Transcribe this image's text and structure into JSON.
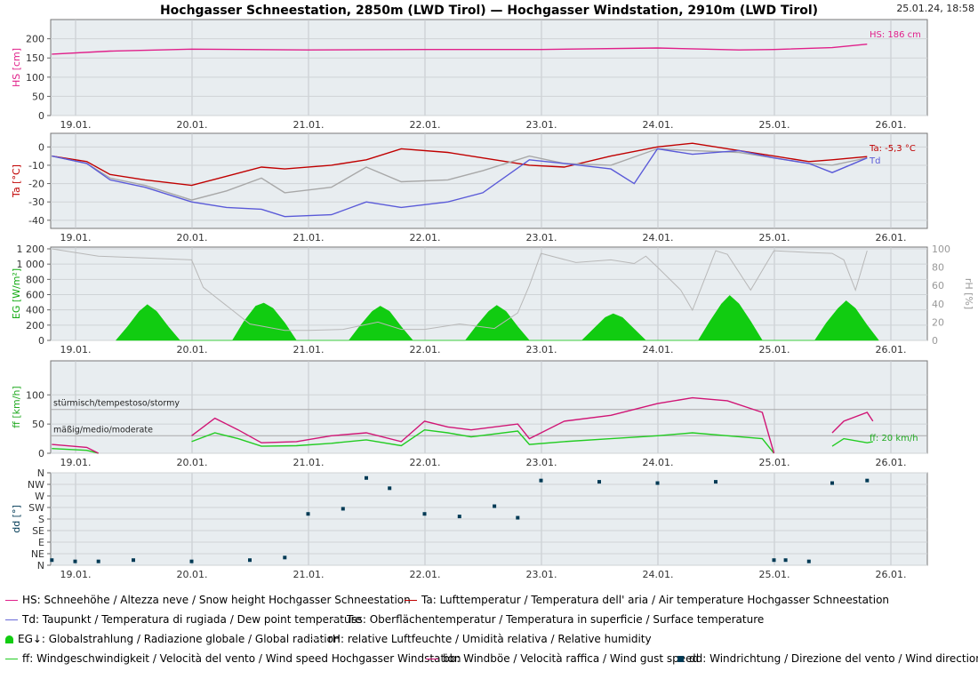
{
  "header": {
    "title": "Hochgasser Schneestation, 2850m (LWD Tirol) — Hochgasser Windstation, 2910m (LWD Tirol)",
    "timestamp": "25.01.24, 18:58"
  },
  "chart_data": [
    {
      "type": "line",
      "ylabel": "HS [cm]",
      "ylim": [
        0,
        220
      ],
      "yticks": [
        "0",
        "50",
        "100",
        "150",
        "200"
      ],
      "x_unit": "days from 19.01. 00:00",
      "xticks": [
        "19.01.",
        "20.01.",
        "21.01.",
        "22.01.",
        "23.01.",
        "24.01.",
        "25.01.",
        "26.01."
      ],
      "series": [
        {
          "name": "HS",
          "color": "#e0208a",
          "x": [
            -0.2,
            0.3,
            1.0,
            2.0,
            3.0,
            4.0,
            5.0,
            5.7,
            6.0,
            6.5,
            6.8
          ],
          "y": [
            160,
            168,
            173,
            171,
            172,
            172,
            176,
            171,
            172,
            177,
            186
          ]
        }
      ],
      "annotations": [
        "HS: 186 cm"
      ]
    },
    {
      "type": "line",
      "ylabel": "Ta [°C]",
      "ylim": [
        -43,
        5
      ],
      "yticks": [
        "-40",
        "-30",
        "-20",
        "-10",
        "0"
      ],
      "x_unit": "days from 19.01. 00:00",
      "series": [
        {
          "name": "Ta",
          "color": "#c00000",
          "x": [
            -0.2,
            0.1,
            0.3,
            0.6,
            1.0,
            1.3,
            1.6,
            1.8,
            2.2,
            2.5,
            2.8,
            3.2,
            3.5,
            3.9,
            4.2,
            4.6,
            5.0,
            5.3,
            5.7,
            6.0,
            6.3,
            6.5,
            6.8
          ],
          "y": [
            -5,
            -8,
            -15,
            -18,
            -21,
            -16,
            -11,
            -12,
            -10,
            -7,
            -1,
            -3,
            -6,
            -10,
            -11,
            -5,
            0,
            2,
            -2,
            -5,
            -8,
            -7,
            -5.3
          ]
        },
        {
          "name": "Tss",
          "color": "#a8a8a8",
          "x": [
            -0.2,
            0.1,
            0.3,
            0.6,
            1.0,
            1.3,
            1.6,
            1.8,
            2.2,
            2.5,
            2.8,
            3.2,
            3.5,
            3.9,
            4.2,
            4.6,
            5.0,
            5.3,
            5.7,
            6.0,
            6.3,
            6.5,
            6.8
          ],
          "y": [
            -5,
            -9,
            -17,
            -21,
            -29,
            -24,
            -17,
            -25,
            -22,
            -11,
            -19,
            -18,
            -13,
            -5,
            -9,
            -10,
            -1,
            -2,
            -3,
            -6,
            -9,
            -10,
            -6
          ]
        },
        {
          "name": "Td",
          "color": "#5a5ad8",
          "x": [
            -0.2,
            0.1,
            0.3,
            0.6,
            1.0,
            1.3,
            1.6,
            1.8,
            2.2,
            2.5,
            2.8,
            3.2,
            3.5,
            3.9,
            4.2,
            4.6,
            4.8,
            5.0,
            5.3,
            5.7,
            6.0,
            6.3,
            6.5,
            6.8
          ],
          "y": [
            -5,
            -9,
            -18,
            -22,
            -30,
            -33,
            -34,
            -38,
            -37,
            -30,
            -33,
            -30,
            -25,
            -7,
            -9,
            -12,
            -20,
            -1,
            -4,
            -2,
            -6,
            -9,
            -14,
            -6
          ]
        }
      ],
      "annotations": [
        "Ta: -5,3 °C",
        "Td"
      ]
    },
    {
      "type": "area",
      "ylabel": "EG [W/m²]",
      "ylim": [
        0,
        1200
      ],
      "yticks": [
        "0",
        "200",
        "400",
        "600",
        "800",
        "1 000",
        "1 200"
      ],
      "y2label": "rH [%]",
      "y2lim": [
        0,
        100
      ],
      "y2ticks": [
        "0",
        "20",
        "40",
        "60",
        "80",
        "100"
      ],
      "x_unit": "days from 19.01. 00:00",
      "series": [
        {
          "name": "EG",
          "color": "#11cc11",
          "x": [
            0.35,
            0.45,
            0.55,
            0.62,
            0.7,
            0.8,
            0.9,
            1.35,
            1.45,
            1.55,
            1.62,
            1.7,
            1.8,
            1.9,
            2.35,
            2.45,
            2.55,
            2.62,
            2.7,
            2.8,
            2.9,
            3.35,
            3.45,
            3.55,
            3.62,
            3.7,
            3.8,
            3.9,
            4.35,
            4.45,
            4.55,
            4.62,
            4.7,
            4.8,
            4.9,
            5.35,
            5.45,
            5.55,
            5.62,
            5.7,
            5.8,
            5.9,
            6.35,
            6.45,
            6.55,
            6.62,
            6.7,
            6.8,
            6.9
          ],
          "y": [
            0,
            180,
            380,
            470,
            380,
            180,
            0,
            0,
            250,
            450,
            490,
            420,
            230,
            0,
            0,
            200,
            380,
            450,
            380,
            180,
            0,
            0,
            200,
            380,
            460,
            380,
            180,
            0,
            0,
            150,
            300,
            350,
            300,
            150,
            0,
            0,
            250,
            480,
            590,
            480,
            250,
            0,
            0,
            230,
            420,
            520,
            420,
            200,
            0
          ]
        },
        {
          "name": "rH",
          "axis": "right",
          "color": "#b8b8b8",
          "x": [
            -0.2,
            0.2,
            0.6,
            1.0,
            1.1,
            1.2,
            1.5,
            1.8,
            2.0,
            2.3,
            2.6,
            2.8,
            3.0,
            3.3,
            3.6,
            3.8,
            3.9,
            4.0,
            4.3,
            4.6,
            4.8,
            4.9,
            5.0,
            5.2,
            5.3,
            5.5,
            5.6,
            5.8,
            6.0,
            6.3,
            6.5,
            6.6,
            6.7,
            6.8
          ],
          "y": [
            100,
            92,
            90,
            88,
            58,
            48,
            18,
            11,
            11,
            12,
            20,
            12,
            12,
            18,
            13,
            30,
            60,
            95,
            85,
            88,
            84,
            92,
            80,
            55,
            33,
            98,
            94,
            55,
            98,
            96,
            95,
            88,
            55,
            98
          ]
        }
      ]
    },
    {
      "type": "line",
      "ylabel": "ff [km/h]",
      "ylim": [
        0,
        140
      ],
      "yticks": [
        "0",
        "50",
        "100"
      ],
      "x_unit": "days from 19.01. 00:00",
      "thresholds": [
        {
          "label": "stürmisch/tempestoso/stormy",
          "value": 75
        },
        {
          "label": "mäßig/medio/moderate",
          "value": 30
        }
      ],
      "series": [
        {
          "name": "ff",
          "color": "#22cc22",
          "x": [
            -0.2,
            0.1,
            0.2,
            0.3,
            0.8,
            1.0,
            1.2,
            1.4,
            1.6,
            1.9,
            2.2,
            2.5,
            2.8,
            3.0,
            3.2,
            3.4,
            3.8,
            3.9,
            4.2,
            4.6,
            5.0,
            5.3,
            5.6,
            5.9,
            6.0,
            6.1,
            6.3,
            6.5,
            6.6,
            6.8,
            6.85
          ],
          "y": [
            8,
            5,
            0,
            null,
            null,
            20,
            35,
            25,
            12,
            13,
            17,
            23,
            13,
            40,
            35,
            28,
            38,
            15,
            20,
            25,
            30,
            35,
            30,
            25,
            0,
            null,
            null,
            12,
            25,
            18,
            20
          ]
        },
        {
          "name": "bb",
          "color": "#d01575",
          "x": [
            -0.2,
            0.1,
            0.2,
            0.3,
            0.8,
            1.0,
            1.2,
            1.4,
            1.6,
            1.9,
            2.2,
            2.5,
            2.8,
            3.0,
            3.2,
            3.4,
            3.8,
            3.9,
            4.2,
            4.6,
            5.0,
            5.3,
            5.6,
            5.9,
            6.0,
            6.1,
            6.3,
            6.5,
            6.6,
            6.8,
            6.85
          ],
          "y": [
            15,
            10,
            0,
            null,
            null,
            30,
            60,
            40,
            18,
            20,
            30,
            35,
            20,
            55,
            45,
            40,
            50,
            25,
            55,
            65,
            85,
            95,
            90,
            70,
            0,
            null,
            null,
            35,
            55,
            70,
            55
          ]
        }
      ],
      "annotations": [
        "ff: 20 km/h"
      ]
    },
    {
      "type": "scatter",
      "ylabel": "dd [°]",
      "ylim": [
        0,
        360
      ],
      "yticks": [
        "N",
        "NE",
        "E",
        "SE",
        "S",
        "SW",
        "W",
        "NW",
        "N"
      ],
      "x_unit": "days from 19.01. 00:00",
      "series": [
        {
          "name": "dd",
          "color": "#003a55",
          "x": [
            -0.2,
            0.0,
            0.2,
            0.5,
            1.0,
            1.5,
            1.8,
            2.0,
            2.3,
            2.5,
            2.7,
            3.0,
            3.3,
            3.6,
            3.8,
            4.0,
            4.5,
            5.0,
            5.5,
            6.0,
            6.1,
            6.3,
            6.5,
            6.8
          ],
          "y": [
            20,
            15,
            15,
            20,
            15,
            20,
            30,
            200,
            220,
            340,
            300,
            200,
            190,
            230,
            185,
            330,
            325,
            320,
            325,
            20,
            20,
            15,
            320,
            330
          ]
        }
      ]
    }
  ],
  "legend": {
    "items": [
      {
        "label": "HS: Schneehöhe / Altezza neve / Snow height  Hochgasser Schneestation",
        "color": "#e0208a"
      },
      {
        "label": "Ta: Lufttemperatur / Temperatura dell' aria / Air temperature  Hochgasser Schneestation",
        "color": "#c00000"
      },
      {
        "label": "Td: Taupunkt / Temperatura di rugiada / Dew point temperature",
        "color": "#6a6ad8"
      },
      {
        "label": "Tss: Oberflächentemperatur / Temperatura in superficie / Surface temperature",
        "color": "#b0b0b0"
      },
      {
        "label": "EG↓: Globalstrahlung / Radiazione globale / Global radiation",
        "color": "#11cc11"
      },
      {
        "label": "rH: relative Luftfeuchte / Umidità relativa / Relative humidity",
        "color": "#c8c8c8"
      },
      {
        "label": "ff: Windgeschwindigkeit / Velocità del vento / Wind speed  Hochgasser Windstation",
        "color": "#22cc22"
      },
      {
        "label": "bb: Windböe / Velocità raffica / Wind gust speed",
        "color": "#d01575"
      },
      {
        "label": "dd: Windrichtung / Direzione del vento / Wind direction",
        "color": "#003a55"
      }
    ]
  }
}
